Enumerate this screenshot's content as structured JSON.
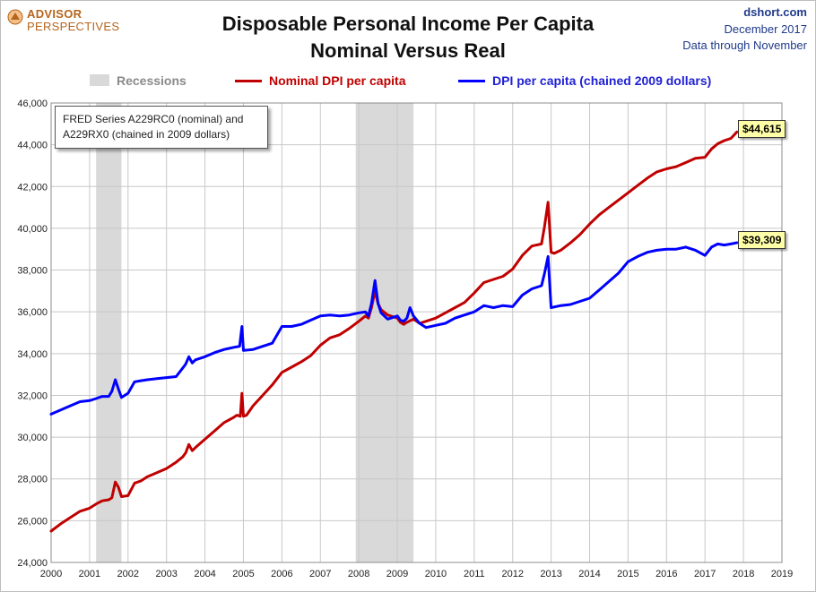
{
  "branding": {
    "line1": "ADVISOR",
    "line2": "PERSPECTIVES",
    "color": "#b5651d"
  },
  "header": {
    "title_line1": "Disposable Personal Income Per Capita",
    "title_line2": "Nominal Versus Real",
    "source": "dshort.com",
    "date": "December 2017",
    "coverage": "Data through November"
  },
  "legend": {
    "recessions": "Recessions",
    "nominal": "Nominal DPI per capita",
    "real": "DPI per capita (chained 2009 dollars)"
  },
  "note": {
    "line1": "FRED Series A229RC0 (nominal) and",
    "line2": "A229RX0 (chained in 2009 dollars)"
  },
  "callouts": {
    "nominal_last": "$44,615",
    "real_last": "$39,309"
  },
  "colors": {
    "nominal": "#c00000",
    "real": "#0000ff",
    "recession": "#d9d9d9",
    "grid": "#c8c8c8"
  },
  "chart_data": {
    "type": "line",
    "title": "Disposable Personal Income Per Capita — Nominal Versus Real",
    "x_range": [
      2000,
      2019
    ],
    "ylim": [
      24000,
      46000
    ],
    "y_ticks": [
      "24,000",
      "26,000",
      "28,000",
      "30,000",
      "32,000",
      "34,000",
      "36,000",
      "38,000",
      "40,000",
      "42,000",
      "44,000",
      "46,000"
    ],
    "x_ticks": [
      "2000",
      "2001",
      "2002",
      "2003",
      "2004",
      "2005",
      "2006",
      "2007",
      "2008",
      "2009",
      "2010",
      "2011",
      "2012",
      "2013",
      "2014",
      "2015",
      "2016",
      "2017",
      "2018",
      "2019"
    ],
    "grid": true,
    "legend_position": "top",
    "recessions": [
      [
        2001.17,
        2001.83
      ],
      [
        2007.92,
        2009.42
      ]
    ],
    "series": [
      {
        "name": "Nominal DPI per capita",
        "color": "#c00000",
        "points": [
          [
            2000.0,
            25500
          ],
          [
            2000.25,
            25850
          ],
          [
            2000.5,
            26150
          ],
          [
            2000.75,
            26450
          ],
          [
            2001.0,
            26600
          ],
          [
            2001.17,
            26800
          ],
          [
            2001.33,
            26950
          ],
          [
            2001.5,
            27000
          ],
          [
            2001.58,
            27100
          ],
          [
            2001.67,
            27850
          ],
          [
            2001.75,
            27600
          ],
          [
            2001.83,
            27150
          ],
          [
            2002.0,
            27200
          ],
          [
            2002.17,
            27800
          ],
          [
            2002.33,
            27900
          ],
          [
            2002.5,
            28100
          ],
          [
            2002.75,
            28300
          ],
          [
            2003.0,
            28500
          ],
          [
            2003.25,
            28800
          ],
          [
            2003.42,
            29050
          ],
          [
            2003.5,
            29250
          ],
          [
            2003.58,
            29650
          ],
          [
            2003.67,
            29350
          ],
          [
            2003.75,
            29500
          ],
          [
            2004.0,
            29900
          ],
          [
            2004.25,
            30300
          ],
          [
            2004.5,
            30700
          ],
          [
            2004.75,
            30950
          ],
          [
            2004.83,
            31050
          ],
          [
            2004.92,
            31000
          ],
          [
            2004.96,
            32100
          ],
          [
            2005.0,
            31000
          ],
          [
            2005.08,
            31050
          ],
          [
            2005.25,
            31500
          ],
          [
            2005.5,
            32000
          ],
          [
            2005.75,
            32500
          ],
          [
            2006.0,
            33100
          ],
          [
            2006.25,
            33350
          ],
          [
            2006.5,
            33600
          ],
          [
            2006.75,
            33900
          ],
          [
            2007.0,
            34400
          ],
          [
            2007.25,
            34750
          ],
          [
            2007.5,
            34900
          ],
          [
            2007.75,
            35200
          ],
          [
            2008.0,
            35550
          ],
          [
            2008.17,
            35800
          ],
          [
            2008.25,
            35700
          ],
          [
            2008.33,
            36200
          ],
          [
            2008.42,
            37000
          ],
          [
            2008.5,
            36400
          ],
          [
            2008.58,
            36100
          ],
          [
            2008.75,
            35850
          ],
          [
            2009.0,
            35700
          ],
          [
            2009.08,
            35500
          ],
          [
            2009.17,
            35400
          ],
          [
            2009.25,
            35500
          ],
          [
            2009.42,
            35650
          ],
          [
            2009.58,
            35450
          ],
          [
            2009.75,
            35550
          ],
          [
            2010.0,
            35700
          ],
          [
            2010.25,
            35950
          ],
          [
            2010.5,
            36200
          ],
          [
            2010.75,
            36450
          ],
          [
            2011.0,
            36900
          ],
          [
            2011.25,
            37400
          ],
          [
            2011.5,
            37550
          ],
          [
            2011.75,
            37700
          ],
          [
            2012.0,
            38050
          ],
          [
            2012.25,
            38700
          ],
          [
            2012.5,
            39150
          ],
          [
            2012.75,
            39250
          ],
          [
            2012.83,
            40100
          ],
          [
            2012.92,
            41250
          ],
          [
            2013.0,
            38850
          ],
          [
            2013.08,
            38800
          ],
          [
            2013.25,
            38950
          ],
          [
            2013.5,
            39300
          ],
          [
            2013.75,
            39700
          ],
          [
            2014.0,
            40200
          ],
          [
            2014.25,
            40650
          ],
          [
            2014.5,
            41000
          ],
          [
            2014.75,
            41350
          ],
          [
            2015.0,
            41700
          ],
          [
            2015.25,
            42050
          ],
          [
            2015.5,
            42400
          ],
          [
            2015.75,
            42700
          ],
          [
            2016.0,
            42850
          ],
          [
            2016.25,
            42950
          ],
          [
            2016.5,
            43150
          ],
          [
            2016.75,
            43350
          ],
          [
            2017.0,
            43400
          ],
          [
            2017.17,
            43800
          ],
          [
            2017.33,
            44050
          ],
          [
            2017.5,
            44200
          ],
          [
            2017.67,
            44300
          ],
          [
            2017.83,
            44615
          ]
        ]
      },
      {
        "name": "DPI per capita (chained 2009 dollars)",
        "color": "#0000ff",
        "points": [
          [
            2000.0,
            31100
          ],
          [
            2000.25,
            31300
          ],
          [
            2000.5,
            31500
          ],
          [
            2000.75,
            31700
          ],
          [
            2001.0,
            31750
          ],
          [
            2001.17,
            31850
          ],
          [
            2001.33,
            31950
          ],
          [
            2001.5,
            31950
          ],
          [
            2001.58,
            32200
          ],
          [
            2001.67,
            32750
          ],
          [
            2001.75,
            32300
          ],
          [
            2001.83,
            31900
          ],
          [
            2002.0,
            32100
          ],
          [
            2002.17,
            32650
          ],
          [
            2002.33,
            32700
          ],
          [
            2002.5,
            32750
          ],
          [
            2002.75,
            32800
          ],
          [
            2003.0,
            32850
          ],
          [
            2003.25,
            32900
          ],
          [
            2003.42,
            33300
          ],
          [
            2003.5,
            33500
          ],
          [
            2003.58,
            33850
          ],
          [
            2003.67,
            33550
          ],
          [
            2003.75,
            33700
          ],
          [
            2004.0,
            33850
          ],
          [
            2004.25,
            34050
          ],
          [
            2004.5,
            34200
          ],
          [
            2004.75,
            34300
          ],
          [
            2004.9,
            34350
          ],
          [
            2004.96,
            35300
          ],
          [
            2005.0,
            34150
          ],
          [
            2005.25,
            34200
          ],
          [
            2005.5,
            34350
          ],
          [
            2005.75,
            34500
          ],
          [
            2006.0,
            35300
          ],
          [
            2006.25,
            35300
          ],
          [
            2006.5,
            35400
          ],
          [
            2006.75,
            35600
          ],
          [
            2007.0,
            35800
          ],
          [
            2007.25,
            35850
          ],
          [
            2007.5,
            35800
          ],
          [
            2007.75,
            35850
          ],
          [
            2008.0,
            35950
          ],
          [
            2008.17,
            36000
          ],
          [
            2008.25,
            35800
          ],
          [
            2008.33,
            36400
          ],
          [
            2008.42,
            37500
          ],
          [
            2008.5,
            36400
          ],
          [
            2008.58,
            35950
          ],
          [
            2008.75,
            35650
          ],
          [
            2009.0,
            35800
          ],
          [
            2009.08,
            35600
          ],
          [
            2009.17,
            35550
          ],
          [
            2009.25,
            35700
          ],
          [
            2009.33,
            36200
          ],
          [
            2009.42,
            35800
          ],
          [
            2009.58,
            35450
          ],
          [
            2009.75,
            35250
          ],
          [
            2010.0,
            35350
          ],
          [
            2010.25,
            35450
          ],
          [
            2010.5,
            35700
          ],
          [
            2010.75,
            35850
          ],
          [
            2011.0,
            36000
          ],
          [
            2011.25,
            36300
          ],
          [
            2011.5,
            36200
          ],
          [
            2011.75,
            36300
          ],
          [
            2012.0,
            36250
          ],
          [
            2012.25,
            36800
          ],
          [
            2012.5,
            37100
          ],
          [
            2012.75,
            37250
          ],
          [
            2012.83,
            37850
          ],
          [
            2012.92,
            38650
          ],
          [
            2013.0,
            36200
          ],
          [
            2013.25,
            36300
          ],
          [
            2013.5,
            36350
          ],
          [
            2013.75,
            36500
          ],
          [
            2014.0,
            36650
          ],
          [
            2014.25,
            37050
          ],
          [
            2014.5,
            37450
          ],
          [
            2014.75,
            37850
          ],
          [
            2015.0,
            38400
          ],
          [
            2015.25,
            38650
          ],
          [
            2015.5,
            38850
          ],
          [
            2015.75,
            38950
          ],
          [
            2016.0,
            39000
          ],
          [
            2016.25,
            39000
          ],
          [
            2016.5,
            39100
          ],
          [
            2016.75,
            38950
          ],
          [
            2017.0,
            38700
          ],
          [
            2017.17,
            39100
          ],
          [
            2017.33,
            39250
          ],
          [
            2017.5,
            39200
          ],
          [
            2017.67,
            39250
          ],
          [
            2017.83,
            39309
          ]
        ]
      }
    ]
  }
}
